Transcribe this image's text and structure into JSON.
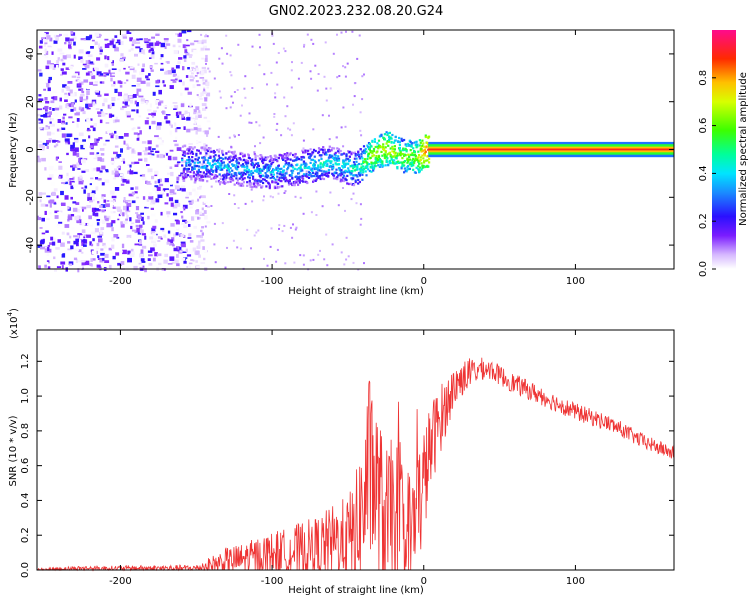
{
  "title": "GN02.2023.232.08.20.G24",
  "chart_data": [
    {
      "type": "heatmap",
      "xlabel": "Height of straight line (km)",
      "ylabel": "Frequency (Hz)",
      "xlim": [
        -255,
        165
      ],
      "ylim": [
        -50,
        50
      ],
      "xticks": [
        -200,
        -100,
        0,
        100
      ],
      "yticks": [
        -40,
        -20,
        0,
        20,
        40
      ],
      "colorbar": {
        "label": "Normalized spectral amplitude",
        "range": [
          0,
          1
        ],
        "ticks": [
          0.0,
          0.2,
          0.4,
          0.6,
          0.8
        ],
        "tick_labels": [
          "0.0",
          "0.2",
          "0.4",
          "0.6",
          "0.8"
        ]
      },
      "features": {
        "noise_region_x": [
          -255,
          -155
        ],
        "signal_trace": {
          "x": [
            -160,
            -140,
            -120,
            -100,
            -80,
            -65,
            -55,
            -45,
            -35,
            -25,
            -15,
            -5,
            0,
            50,
            100,
            165
          ],
          "frequency": [
            -5,
            -6,
            -8,
            -9,
            -7,
            -5,
            -6,
            -8,
            -2,
            1,
            -2,
            -3,
            0,
            0,
            0,
            0
          ],
          "amplitude": [
            0.35,
            0.38,
            0.36,
            0.38,
            0.4,
            0.45,
            0.42,
            0.45,
            0.65,
            0.7,
            0.6,
            0.65,
            0.85,
            0.88,
            0.88,
            0.88
          ]
        }
      }
    },
    {
      "type": "line",
      "xlabel": "Height of straight line (km)",
      "ylabel": "SNR (10 * v/v)",
      "yscale_label": "(x10",
      "yscale_exponent": "4",
      "xlim": [
        -255,
        165
      ],
      "ylim": [
        0,
        1.38
      ],
      "xticks": [
        -200,
        -100,
        0,
        100
      ],
      "yticks": [
        0.0,
        0.2,
        0.4,
        0.6,
        0.8,
        1.0,
        1.2
      ],
      "ytick_labels": [
        "0.0",
        "0.2",
        "0.4",
        "0.6",
        "0.8",
        "1.0",
        "1.2"
      ],
      "color": "#ee3333",
      "series": [
        {
          "x": [
            -255,
            -230,
            -200,
            -170,
            -150,
            -140,
            -130,
            -120,
            -110,
            -100,
            -90,
            -80,
            -70,
            -60,
            -50,
            -45,
            -40,
            -36,
            -34,
            -30,
            -25,
            -20,
            -15,
            -10,
            -5,
            0,
            5,
            10,
            15,
            20,
            25,
            30,
            35,
            40,
            45,
            50,
            60,
            70,
            80,
            90,
            100,
            110,
            120,
            130,
            140,
            150,
            165
          ],
          "y": [
            0.0,
            0.01,
            0.01,
            0.01,
            0.01,
            0.03,
            0.05,
            0.06,
            0.08,
            0.1,
            0.1,
            0.12,
            0.13,
            0.16,
            0.18,
            0.2,
            0.35,
            0.6,
            0.55,
            0.4,
            0.25,
            0.3,
            0.2,
            0.15,
            0.3,
            0.5,
            0.72,
            0.85,
            0.95,
            1.05,
            1.1,
            1.13,
            1.15,
            1.16,
            1.15,
            1.12,
            1.07,
            1.03,
            0.99,
            0.95,
            0.91,
            0.88,
            0.85,
            0.81,
            0.76,
            0.72,
            0.67
          ]
        }
      ],
      "noise_amplitude": [
        [
          -255,
          0.01
        ],
        [
          -150,
          0.02
        ],
        [
          -130,
          0.08
        ],
        [
          -100,
          0.12
        ],
        [
          -70,
          0.18
        ],
        [
          -50,
          0.25
        ],
        [
          -40,
          0.45
        ],
        [
          -35,
          0.55
        ],
        [
          -25,
          0.45
        ],
        [
          -15,
          0.5
        ],
        [
          -5,
          0.4
        ],
        [
          5,
          0.25
        ],
        [
          20,
          0.12
        ],
        [
          40,
          0.06
        ],
        [
          100,
          0.05
        ],
        [
          165,
          0.04
        ]
      ]
    }
  ]
}
